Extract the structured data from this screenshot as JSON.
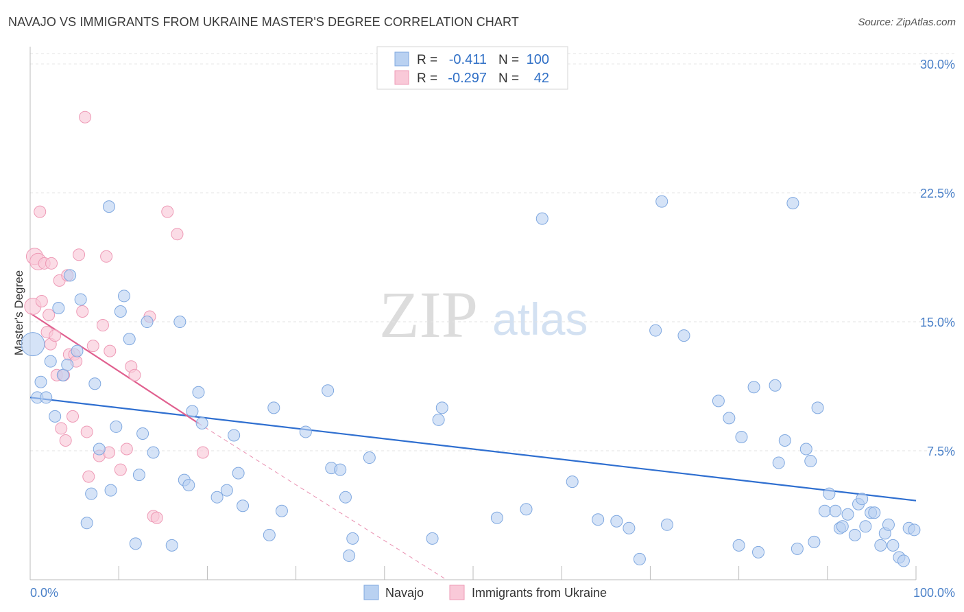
{
  "title": "NAVAJO VS IMMIGRANTS FROM UKRAINE MASTER'S DEGREE CORRELATION CHART",
  "source": "Source: ZipAtlas.com",
  "watermark": {
    "left": "ZIP",
    "right": "atlas"
  },
  "legend_top": {
    "rows": [
      {
        "r_label": "R =",
        "r_value": "-0.411",
        "n_label": "N =",
        "n_value": "100"
      },
      {
        "r_label": "R =",
        "r_value": "-0.297",
        "n_label": "N =",
        "n_value": "42"
      }
    ]
  },
  "chart_data": {
    "type": "scatter",
    "title": "NAVAJO VS IMMIGRANTS FROM UKRAINE MASTER'S DEGREE CORRELATION CHART",
    "xlabel": "",
    "ylabel": "Master's Degree",
    "xlim": [
      0,
      100
    ],
    "ylim": [
      0,
      31
    ],
    "y_ticks": [
      {
        "value": 7.5,
        "label": "7.5%"
      },
      {
        "value": 15,
        "label": "15.0%"
      },
      {
        "value": 22.5,
        "label": "22.5%"
      },
      {
        "value": 30,
        "label": "30.0%"
      }
    ],
    "x_tick_labels": [
      {
        "value": 0,
        "label": "0.0%"
      },
      {
        "value": 100,
        "label": "100.0%"
      }
    ],
    "grid": true,
    "colors": {
      "navajo_fill": "#b9d1f1",
      "navajo_stroke": "#7fa8e0",
      "navajo_line": "#2f6fd0",
      "ukraine_fill": "#f9c9d8",
      "ukraine_stroke": "#ee9ab6",
      "ukraine_line": "#e0608f",
      "grid": "#e3e3e3",
      "axis": "#bbbbbb"
    },
    "series": [
      {
        "name": "Navajo",
        "r": -0.411,
        "n": 100,
        "trend": {
          "x": [
            0,
            100
          ],
          "y": [
            10.6,
            4.6
          ]
        },
        "points": [
          [
            0.3,
            13.7
          ],
          [
            0.8,
            10.6
          ],
          [
            1.2,
            11.5
          ],
          [
            1.8,
            10.6
          ],
          [
            2.3,
            12.7
          ],
          [
            2.8,
            9.5
          ],
          [
            3.2,
            15.8
          ],
          [
            3.7,
            11.9
          ],
          [
            4.2,
            12.5
          ],
          [
            4.5,
            17.7
          ],
          [
            5.3,
            13.3
          ],
          [
            5.7,
            16.3
          ],
          [
            6.4,
            3.3
          ],
          [
            6.9,
            5.0
          ],
          [
            7.3,
            11.4
          ],
          [
            7.8,
            7.6
          ],
          [
            9.1,
            5.2
          ],
          [
            9.7,
            8.9
          ],
          [
            8.9,
            21.7
          ],
          [
            10.2,
            15.6
          ],
          [
            10.6,
            16.5
          ],
          [
            11.2,
            14.0
          ],
          [
            11.9,
            2.1
          ],
          [
            12.3,
            6.1
          ],
          [
            12.7,
            8.5
          ],
          [
            13.2,
            15.0
          ],
          [
            13.9,
            7.4
          ],
          [
            16.0,
            2.0
          ],
          [
            16.9,
            15.0
          ],
          [
            17.4,
            5.8
          ],
          [
            17.9,
            5.5
          ],
          [
            18.3,
            9.8
          ],
          [
            19.0,
            10.9
          ],
          [
            19.4,
            9.1
          ],
          [
            21.1,
            4.8
          ],
          [
            22.2,
            5.2
          ],
          [
            23.0,
            8.4
          ],
          [
            23.5,
            6.2
          ],
          [
            24.0,
            4.3
          ],
          [
            27.0,
            2.6
          ],
          [
            27.5,
            10.0
          ],
          [
            28.4,
            4.0
          ],
          [
            31.1,
            8.6
          ],
          [
            33.6,
            11.0
          ],
          [
            34.0,
            6.5
          ],
          [
            35.0,
            6.4
          ],
          [
            35.6,
            4.8
          ],
          [
            36.0,
            1.4
          ],
          [
            36.4,
            2.4
          ],
          [
            38.3,
            7.1
          ],
          [
            45.4,
            2.4
          ],
          [
            46.1,
            9.3
          ],
          [
            46.5,
            10.0
          ],
          [
            52.7,
            3.6
          ],
          [
            56.0,
            4.1
          ],
          [
            57.8,
            21.0
          ],
          [
            61.2,
            5.7
          ],
          [
            64.1,
            3.5
          ],
          [
            66.2,
            3.4
          ],
          [
            67.6,
            3.0
          ],
          [
            68.8,
            1.2
          ],
          [
            70.6,
            14.5
          ],
          [
            71.3,
            22.0
          ],
          [
            71.9,
            3.2
          ],
          [
            73.8,
            14.2
          ],
          [
            77.7,
            10.4
          ],
          [
            78.9,
            9.4
          ],
          [
            80.0,
            2.0
          ],
          [
            80.3,
            8.3
          ],
          [
            81.7,
            11.2
          ],
          [
            82.2,
            1.6
          ],
          [
            84.1,
            11.3
          ],
          [
            84.5,
            6.8
          ],
          [
            85.2,
            8.1
          ],
          [
            86.1,
            21.9
          ],
          [
            86.6,
            1.8
          ],
          [
            87.6,
            7.6
          ],
          [
            88.1,
            6.9
          ],
          [
            88.5,
            2.2
          ],
          [
            88.9,
            10.0
          ],
          [
            89.7,
            4.0
          ],
          [
            90.2,
            5.0
          ],
          [
            90.9,
            4.0
          ],
          [
            91.4,
            3.0
          ],
          [
            91.7,
            3.1
          ],
          [
            92.3,
            3.8
          ],
          [
            93.1,
            2.6
          ],
          [
            93.5,
            4.4
          ],
          [
            93.9,
            4.7
          ],
          [
            94.3,
            3.1
          ],
          [
            94.9,
            3.9
          ],
          [
            95.3,
            3.9
          ],
          [
            96.0,
            2.0
          ],
          [
            96.5,
            2.7
          ],
          [
            96.9,
            3.2
          ],
          [
            97.4,
            2.0
          ],
          [
            98.1,
            1.3
          ],
          [
            98.6,
            1.1
          ],
          [
            99.2,
            3.0
          ],
          [
            99.8,
            2.9
          ]
        ]
      },
      {
        "name": "Immigrants from Ukraine",
        "r": -0.297,
        "n": 42,
        "trend": {
          "x": [
            0,
            19
          ],
          "y": [
            15.5,
            9.1
          ]
        },
        "trend_extension": {
          "x": [
            19,
            47
          ],
          "y": [
            9.1,
            0
          ]
        },
        "points": [
          [
            0.3,
            15.9
          ],
          [
            0.5,
            18.8
          ],
          [
            0.9,
            18.5
          ],
          [
            1.1,
            21.4
          ],
          [
            1.3,
            16.2
          ],
          [
            1.6,
            18.4
          ],
          [
            1.9,
            14.4
          ],
          [
            2.1,
            15.4
          ],
          [
            2.3,
            13.7
          ],
          [
            2.4,
            18.4
          ],
          [
            2.8,
            14.2
          ],
          [
            3.0,
            11.9
          ],
          [
            3.3,
            17.4
          ],
          [
            3.5,
            8.8
          ],
          [
            3.8,
            11.9
          ],
          [
            4.0,
            8.1
          ],
          [
            4.2,
            17.7
          ],
          [
            4.4,
            13.1
          ],
          [
            4.8,
            9.5
          ],
          [
            5.0,
            13.1
          ],
          [
            5.2,
            12.7
          ],
          [
            5.5,
            18.9
          ],
          [
            5.9,
            15.6
          ],
          [
            6.2,
            26.9
          ],
          [
            6.4,
            8.6
          ],
          [
            6.6,
            6.0
          ],
          [
            7.1,
            13.6
          ],
          [
            7.8,
            7.2
          ],
          [
            8.2,
            14.8
          ],
          [
            8.6,
            18.8
          ],
          [
            8.9,
            7.4
          ],
          [
            9.0,
            13.3
          ],
          [
            10.2,
            6.4
          ],
          [
            10.9,
            7.6
          ],
          [
            11.4,
            12.4
          ],
          [
            11.8,
            11.9
          ],
          [
            13.5,
            15.3
          ],
          [
            13.9,
            3.7
          ],
          [
            14.3,
            3.6
          ],
          [
            15.5,
            21.4
          ],
          [
            16.6,
            20.1
          ],
          [
            19.5,
            7.4
          ]
        ]
      }
    ]
  },
  "legend_bottom": [
    {
      "label": "Navajo"
    },
    {
      "label": "Immigrants from Ukraine"
    }
  ]
}
